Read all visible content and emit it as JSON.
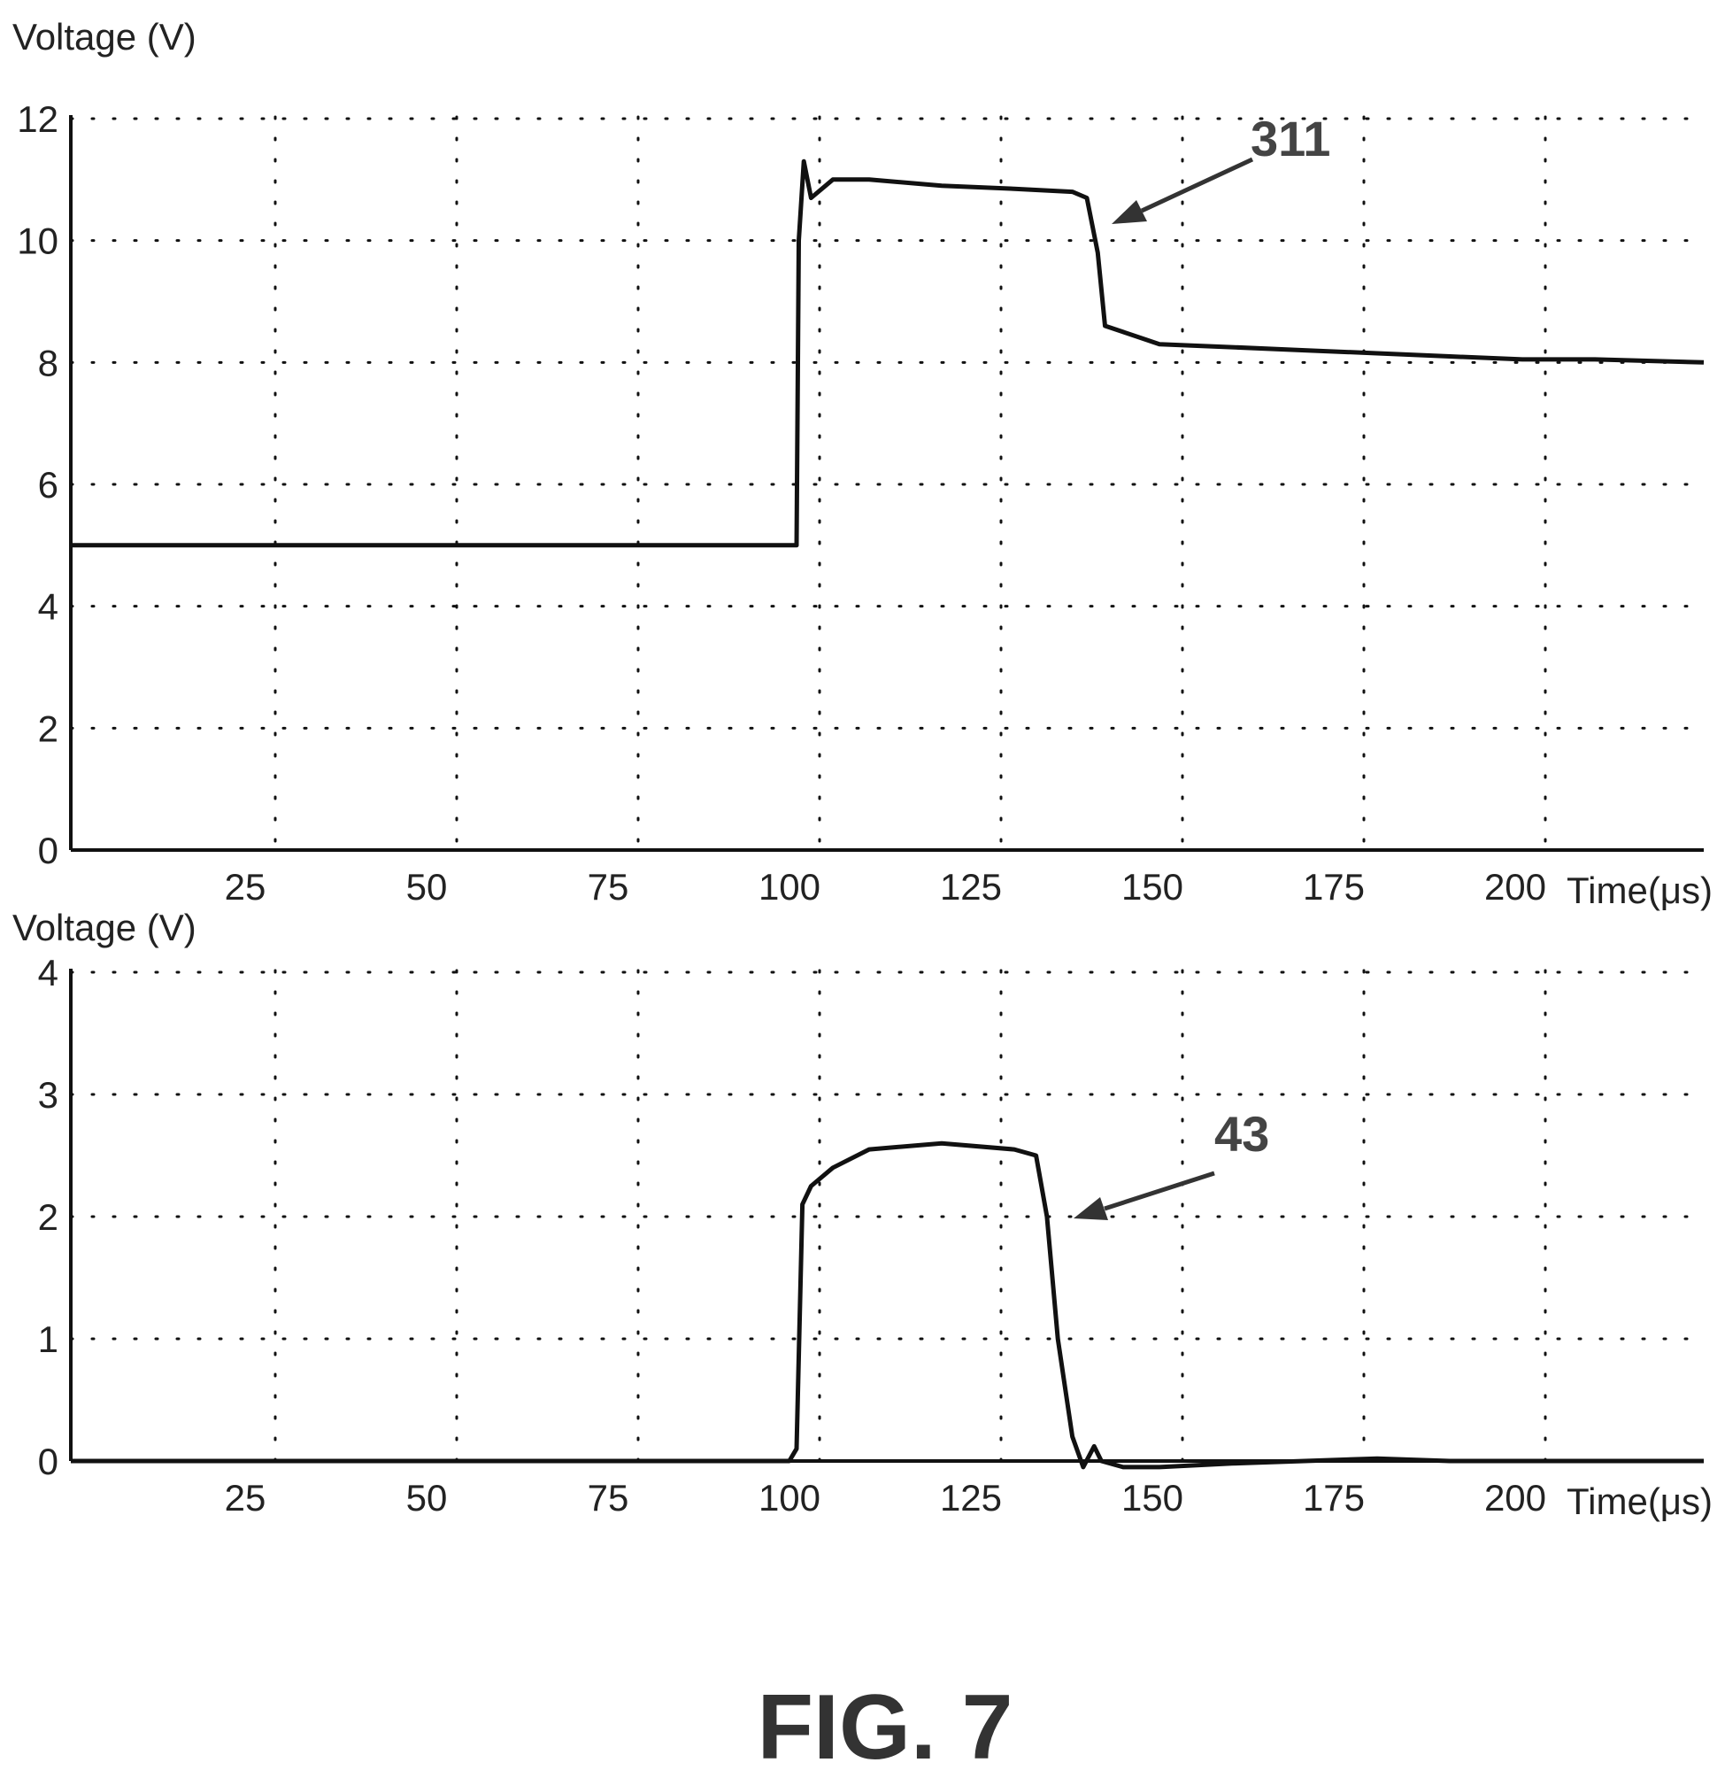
{
  "chart_data": [
    {
      "type": "line",
      "ylabel": "Voltage (V)",
      "xlabel": "Time(μs)",
      "xlim": [
        0,
        225
      ],
      "ylim": [
        0,
        12
      ],
      "x_ticks": [
        25,
        50,
        75,
        100,
        125,
        150,
        175,
        200
      ],
      "y_ticks": [
        0,
        2,
        4,
        6,
        8,
        10,
        12
      ],
      "grid": true,
      "series": [
        {
          "x": [
            0,
            20,
            40,
            60,
            80,
            100,
            100.3,
            101,
            102,
            105,
            110,
            120,
            130,
            138,
            140,
            141.5,
            142.5,
            145,
            150,
            160,
            170,
            180,
            190,
            200,
            210,
            225
          ],
          "y": [
            5.0,
            5.0,
            5.0,
            5.0,
            5.0,
            5.0,
            10.0,
            11.3,
            10.7,
            11.0,
            11.0,
            10.9,
            10.85,
            10.8,
            10.7,
            9.8,
            8.6,
            8.5,
            8.3,
            8.25,
            8.2,
            8.15,
            8.1,
            8.05,
            8.05,
            8.0
          ]
        }
      ],
      "annotations": [
        {
          "label": "311",
          "x": 143,
          "y": 10.3
        }
      ]
    },
    {
      "type": "line",
      "ylabel": "Voltage (V)",
      "xlabel": "Time(μs)",
      "xlim": [
        0,
        225
      ],
      "ylim": [
        0,
        4
      ],
      "x_ticks": [
        25,
        50,
        75,
        100,
        125,
        150,
        175,
        200
      ],
      "y_ticks": [
        0,
        1,
        2,
        3,
        4
      ],
      "grid": true,
      "series": [
        {
          "x": [
            0,
            20,
            40,
            60,
            80,
            99,
            100,
            100.8,
            102,
            105,
            110,
            120,
            130,
            133,
            134.5,
            136,
            138,
            139.5,
            141,
            142,
            145,
            150,
            160,
            170,
            180,
            190,
            200,
            225
          ],
          "y": [
            0.0,
            0.0,
            0.0,
            0.0,
            0.0,
            0.0,
            0.1,
            2.1,
            2.25,
            2.4,
            2.55,
            2.6,
            2.55,
            2.5,
            2.0,
            1.0,
            0.2,
            -0.05,
            0.12,
            0.0,
            -0.05,
            -0.05,
            -0.02,
            0.0,
            0.02,
            0.0,
            0.0,
            0.0
          ]
        }
      ],
      "annotations": [
        {
          "label": "43",
          "x": 138.5,
          "y": 2.0
        }
      ]
    }
  ],
  "caption": "FIG. 7"
}
